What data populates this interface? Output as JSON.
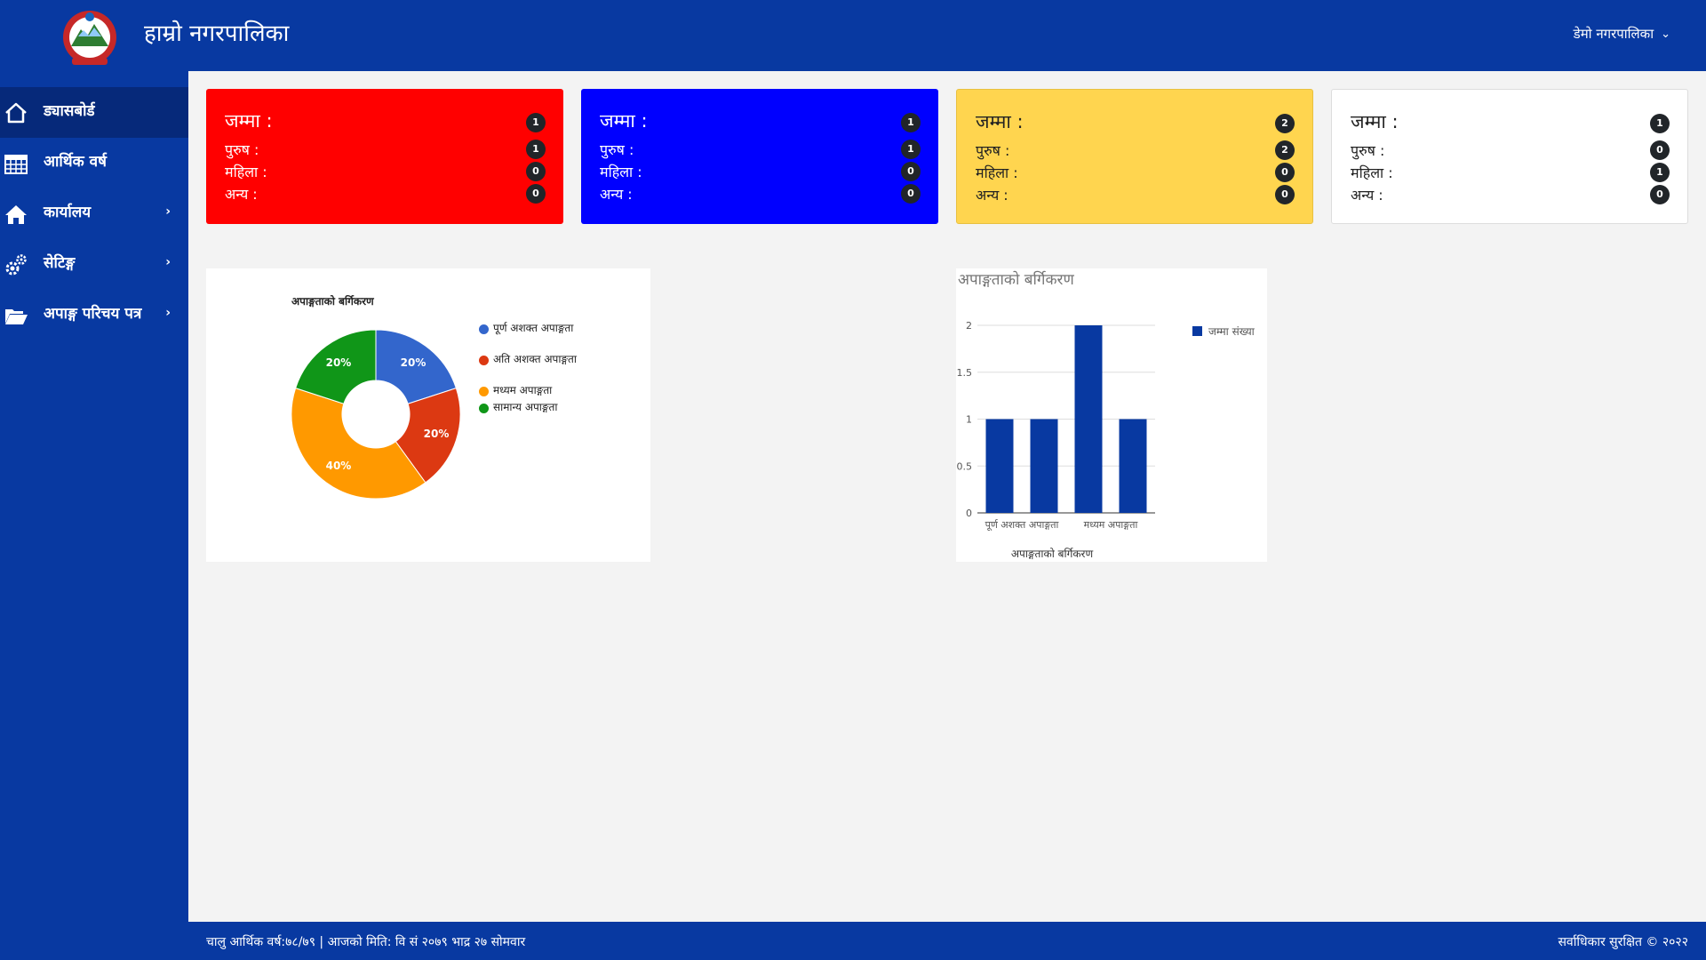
{
  "header": {
    "app_title": "हाम्रो नगरपालिका",
    "user_menu_label": "डेमो नगरपालिका"
  },
  "sidebar": {
    "items": [
      {
        "label": "ड्यासबोर्ड",
        "icon": "home-icon",
        "active": true,
        "has_submenu": false
      },
      {
        "label": "आर्थिक वर्ष",
        "icon": "calendar-icon",
        "active": false,
        "has_submenu": false
      },
      {
        "label": "कार्यालय",
        "icon": "house-icon",
        "active": false,
        "has_submenu": true
      },
      {
        "label": "सेटिङ्ग",
        "icon": "gears-icon",
        "active": false,
        "has_submenu": true
      },
      {
        "label": "अपाङ्ग परिचय पत्र",
        "icon": "folder-open-icon",
        "active": false,
        "has_submenu": true
      }
    ]
  },
  "cards": [
    {
      "color": "#ff0000",
      "total_label": "जम्मा :",
      "total": "1",
      "rows": [
        {
          "label": "पुरुष :",
          "value": "1"
        },
        {
          "label": "महिला :",
          "value": "0"
        },
        {
          "label": "अन्य :",
          "value": "0"
        }
      ]
    },
    {
      "color": "#0000ff",
      "total_label": "जम्मा :",
      "total": "1",
      "rows": [
        {
          "label": "पुरुष :",
          "value": "1"
        },
        {
          "label": "महिला :",
          "value": "0"
        },
        {
          "label": "अन्य :",
          "value": "0"
        }
      ]
    },
    {
      "color": "#ffd54f",
      "total_label": "जम्मा :",
      "total": "2",
      "rows": [
        {
          "label": "पुरुष :",
          "value": "2"
        },
        {
          "label": "महिला :",
          "value": "0"
        },
        {
          "label": "अन्य :",
          "value": "0"
        }
      ]
    },
    {
      "color": "#ffffff",
      "total_label": "जम्मा :",
      "total": "1",
      "rows": [
        {
          "label": "पुरुष :",
          "value": "0"
        },
        {
          "label": "महिला :",
          "value": "1"
        },
        {
          "label": "अन्य :",
          "value": "0"
        }
      ]
    }
  ],
  "chart_data": [
    {
      "type": "pie",
      "title": "अपाङ्गताको बर्गिकरण",
      "donut": true,
      "slices": [
        {
          "label": "पूर्ण अशक्त अपाङ्गता",
          "value": 1,
          "percent_label": "20%",
          "color": "#3366cc"
        },
        {
          "label": "अति अशक्त अपाङ्गता",
          "value": 1,
          "percent_label": "20%",
          "color": "#dc3912"
        },
        {
          "label": "मध्यम अपाङ्गता",
          "value": 2,
          "percent_label": "40%",
          "color": "#ff9900"
        },
        {
          "label": "सामान्य अपाङ्गता",
          "value": 1,
          "percent_label": "20%",
          "color": "#109618"
        }
      ],
      "legend_position": "right"
    },
    {
      "type": "bar",
      "title": "अपाङ्गताको बर्गिकरण",
      "xlabel": "अपाङ्गताको बर्गिकरण",
      "categories": [
        "पूर्ण अशक्त अपाङ्गता",
        "अति अशक्त अपाङ्गता",
        "मध्यम अपाङ्गता",
        "सामान्य अपाङ्गता"
      ],
      "visible_tick_labels": [
        "पूर्ण अशक्त अपाङ्गता",
        "मध्यम अपाङ्गता"
      ],
      "series": [
        {
          "name": "जम्मा संख्या",
          "values": [
            1,
            1,
            2,
            1
          ],
          "color": "#0839a1"
        }
      ],
      "ylim": [
        0,
        2
      ],
      "yticks": [
        "0",
        "0.5",
        "1",
        "1.5",
        "2"
      ],
      "grid": true,
      "legend_position": "right"
    }
  ],
  "footer": {
    "left_text": "चालु आर्थिक वर्ष:७८/७९ | आजको मिति: वि सं २०७९ भाद्र २७ सोमवार",
    "right_text": "सर्वाधिकार सुरक्षित © २०२२"
  }
}
